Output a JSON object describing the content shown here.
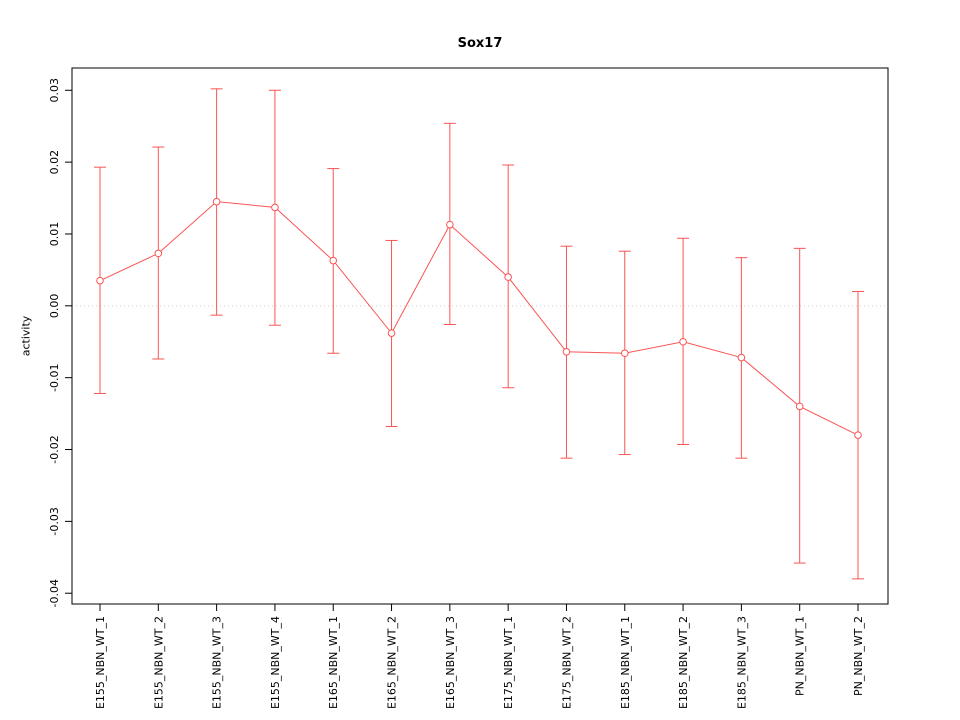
{
  "chart_data": {
    "type": "line",
    "title": "Sox17",
    "xlabel": "",
    "ylabel": "activity",
    "categories": [
      "E155_NBN_WT_1",
      "E155_NBN_WT_2",
      "E155_NBN_WT_3",
      "E155_NBN_WT_4",
      "E165_NBN_WT_1",
      "E165_NBN_WT_2",
      "E165_NBN_WT_3",
      "E175_NBN_WT_1",
      "E175_NBN_WT_2",
      "E185_NBN_WT_1",
      "E185_NBN_WT_2",
      "E185_NBN_WT_3",
      "PN_NBN_WT_1",
      "PN_NBN_WT_2"
    ],
    "series": [
      {
        "name": "Sox17 activity",
        "values": [
          0.0035,
          0.0073,
          0.0145,
          0.0137,
          0.0063,
          -0.0038,
          0.0113,
          0.004,
          -0.0064,
          -0.0066,
          -0.005,
          -0.0072,
          -0.014,
          -0.018
        ],
        "error_low": [
          -0.0122,
          -0.0074,
          -0.0013,
          -0.0027,
          -0.0066,
          -0.0168,
          -0.0026,
          -0.0114,
          -0.0212,
          -0.0207,
          -0.0193,
          -0.0212,
          -0.0358,
          -0.038
        ],
        "error_high": [
          0.0193,
          0.0221,
          0.0302,
          0.03,
          0.0191,
          0.0091,
          0.0254,
          0.0196,
          0.0083,
          0.0076,
          0.0094,
          0.0067,
          0.008,
          0.002
        ]
      }
    ],
    "yticks": [
      -0.04,
      -0.03,
      -0.02,
      -0.01,
      0.0,
      0.01,
      0.02,
      0.03
    ],
    "ylim": [
      -0.0415,
      0.0331
    ],
    "zero_line": 0,
    "legend": "none",
    "grid": "dotted-zero-line-only",
    "colors": {
      "series": "#f95454",
      "axis": "#000000",
      "zero_line": "#cccccc",
      "background": "#ffffff"
    }
  }
}
